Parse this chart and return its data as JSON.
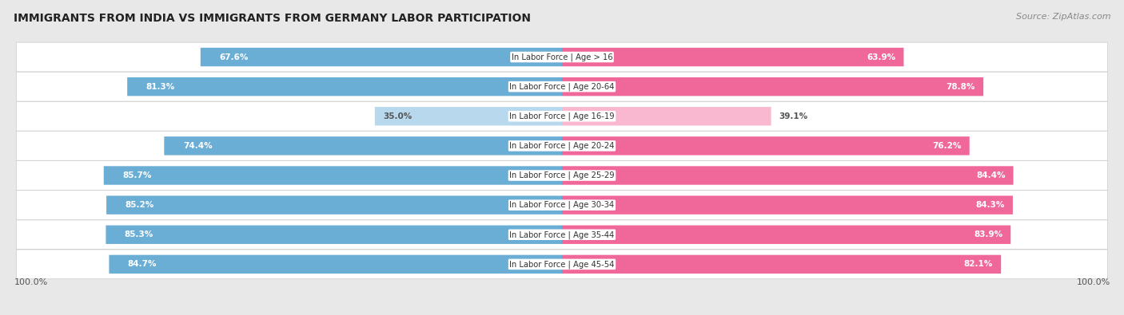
{
  "title": "IMMIGRANTS FROM INDIA VS IMMIGRANTS FROM GERMANY LABOR PARTICIPATION",
  "source": "Source: ZipAtlas.com",
  "categories": [
    "In Labor Force | Age > 16",
    "In Labor Force | Age 20-64",
    "In Labor Force | Age 16-19",
    "In Labor Force | Age 20-24",
    "In Labor Force | Age 25-29",
    "In Labor Force | Age 30-34",
    "In Labor Force | Age 35-44",
    "In Labor Force | Age 45-54"
  ],
  "india_values": [
    67.6,
    81.3,
    35.0,
    74.4,
    85.7,
    85.2,
    85.3,
    84.7
  ],
  "germany_values": [
    63.9,
    78.8,
    39.1,
    76.2,
    84.4,
    84.3,
    83.9,
    82.1
  ],
  "india_color": "#6aaed6",
  "india_color_light": "#b8d8ed",
  "germany_color": "#f06899",
  "germany_color_light": "#f9b8cf",
  "label_india": "Immigrants from India",
  "label_germany": "Immigrants from Germany",
  "bg_color": "#e8e8e8",
  "row_bg_light": "#f2f2f2",
  "row_bg_white": "#ffffff",
  "max_val": 100.0,
  "threshold": 50.0
}
